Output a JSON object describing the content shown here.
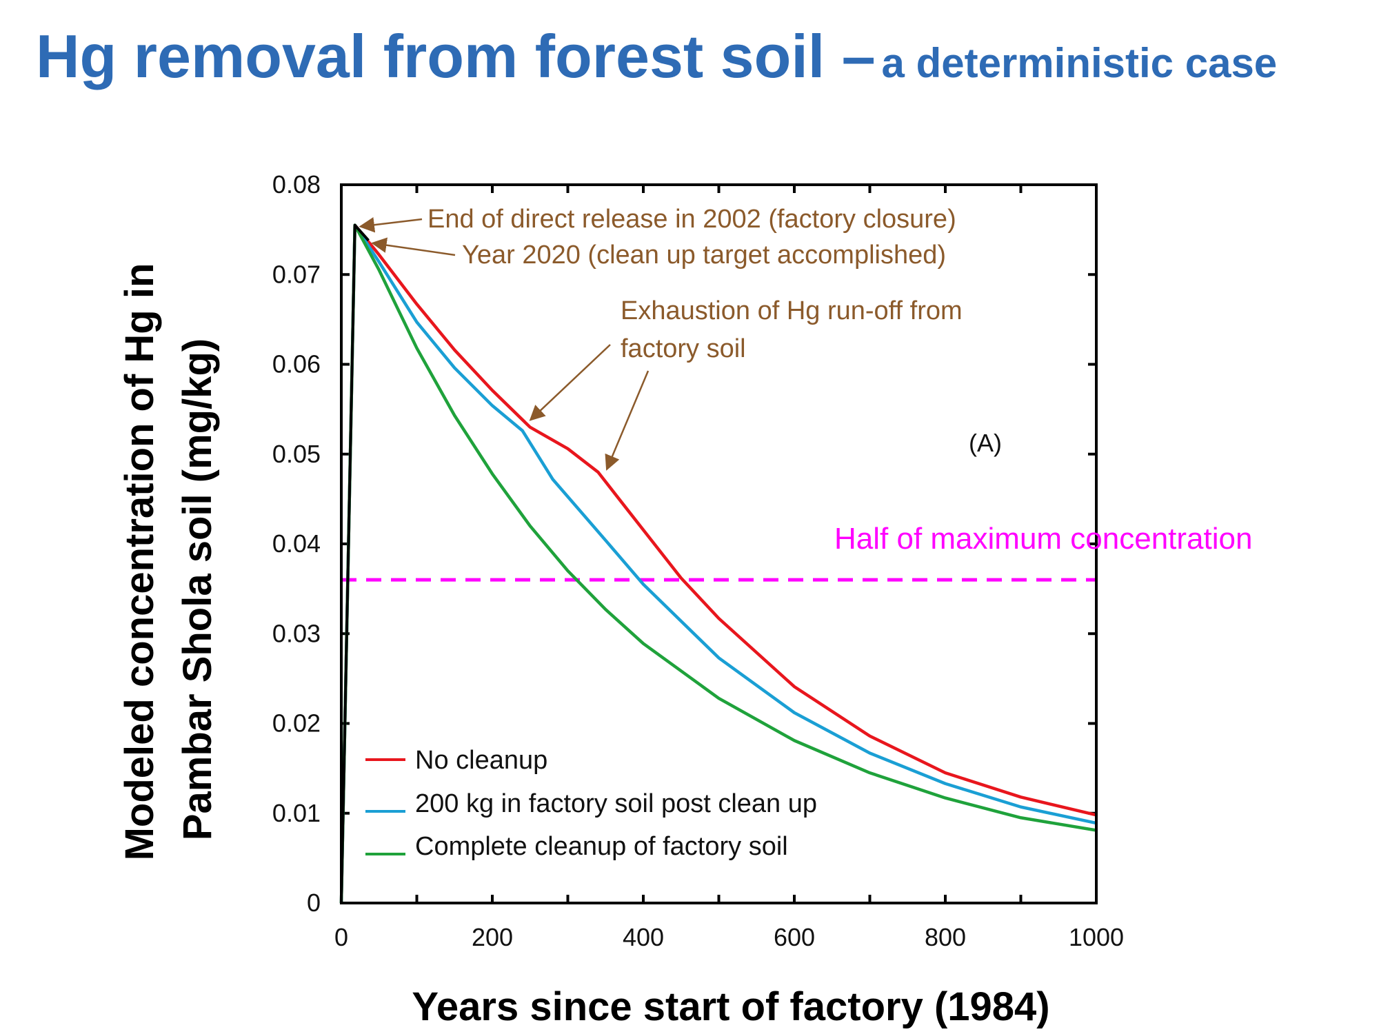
{
  "slide": {
    "title_main": "Hg removal from forest soil –",
    "title_sub": "a deterministic case"
  },
  "colors": {
    "title": "#2e6bb5",
    "annotation": "#8b5a2b",
    "reference": "#ff00ff"
  },
  "chart_data": {
    "type": "line",
    "title": "",
    "xlabel": "Years since start of factory (1984)",
    "ylabel_line1": "Modeled concentration of Hg in",
    "ylabel_line2": "Pambar Shola soil (mg/kg)",
    "xlim": [
      0,
      1000
    ],
    "ylim": [
      0,
      0.08
    ],
    "x_ticks": [
      "0",
      "200",
      "400",
      "600",
      "800",
      "1000"
    ],
    "y_ticks": [
      "0",
      "0.01",
      "0.02",
      "0.03",
      "0.04",
      "0.05",
      "0.06",
      "0.07",
      "0.08"
    ],
    "panel_label": "(A)",
    "series": [
      {
        "name": "No cleanup",
        "color": "#e8161d",
        "points": [
          [
            0,
            0.0
          ],
          [
            18,
            0.0755
          ],
          [
            50,
            0.0722
          ],
          [
            100,
            0.0667
          ],
          [
            150,
            0.0616
          ],
          [
            200,
            0.0571
          ],
          [
            250,
            0.053
          ],
          [
            300,
            0.0506
          ],
          [
            340,
            0.048
          ],
          [
            380,
            0.0437
          ],
          [
            450,
            0.0362
          ],
          [
            500,
            0.0317
          ],
          [
            600,
            0.0241
          ],
          [
            700,
            0.0186
          ],
          [
            800,
            0.0145
          ],
          [
            900,
            0.0118
          ],
          [
            1000,
            0.0098
          ]
        ]
      },
      {
        "name": "200 kg in factory soil post clean up",
        "color": "#1a9fd4",
        "points": [
          [
            0,
            0.0
          ],
          [
            18,
            0.0755
          ],
          [
            50,
            0.0714
          ],
          [
            100,
            0.0647
          ],
          [
            150,
            0.0596
          ],
          [
            200,
            0.0554
          ],
          [
            240,
            0.0526
          ],
          [
            280,
            0.0472
          ],
          [
            350,
            0.0404
          ],
          [
            400,
            0.0355
          ],
          [
            500,
            0.0273
          ],
          [
            600,
            0.0212
          ],
          [
            700,
            0.0167
          ],
          [
            800,
            0.0133
          ],
          [
            900,
            0.0107
          ],
          [
            1000,
            0.0089
          ]
        ]
      },
      {
        "name": "Complete cleanup of factory soil",
        "color": "#1fa23b",
        "points": [
          [
            0,
            0.0
          ],
          [
            18,
            0.0755
          ],
          [
            50,
            0.0705
          ],
          [
            100,
            0.0618
          ],
          [
            150,
            0.0543
          ],
          [
            200,
            0.0478
          ],
          [
            250,
            0.042
          ],
          [
            300,
            0.037
          ],
          [
            350,
            0.0327
          ],
          [
            400,
            0.0289
          ],
          [
            500,
            0.0228
          ],
          [
            600,
            0.0181
          ],
          [
            700,
            0.0145
          ],
          [
            800,
            0.0117
          ],
          [
            900,
            0.0095
          ],
          [
            1000,
            0.0081
          ]
        ]
      }
    ],
    "reference_line": {
      "label": "Half of maximum concentration",
      "y": 0.036,
      "style": "dashed"
    },
    "annotations": [
      {
        "text": "End of direct release in 2002 (factory closure)",
        "target": [
          18,
          0.0755
        ]
      },
      {
        "text": "Year 2020 (clean up target accomplished)",
        "target": [
          36,
          0.0738
        ]
      },
      {
        "text_line1": "Exhaustion of Hg run-off from",
        "text_line2": "factory soil",
        "targets": [
          [
            245,
            0.0535
          ],
          [
            348,
            0.048
          ]
        ]
      }
    ]
  }
}
